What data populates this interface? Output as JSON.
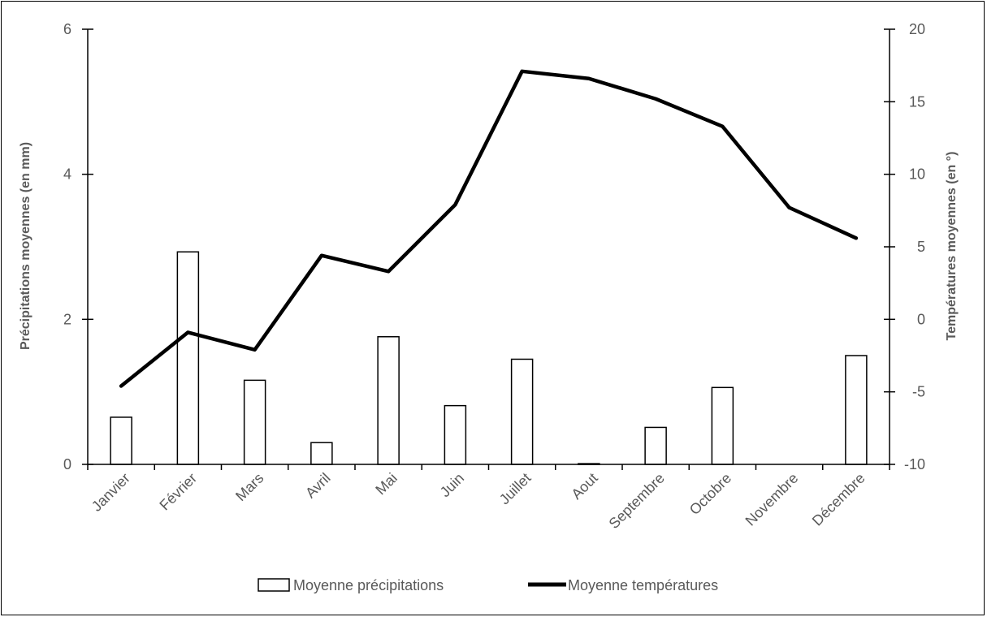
{
  "chart_data": {
    "type": "bar+line",
    "categories": [
      "Janvier",
      "Février",
      "Mars",
      "Avril",
      "Mai",
      "Juin",
      "Juillet",
      "Aout",
      "Septembre",
      "Octobre",
      "Novembre",
      "Décembre"
    ],
    "series": [
      {
        "name": "Moyenne précipitations",
        "type": "bar",
        "axis": "left",
        "values": [
          0.65,
          2.93,
          1.16,
          0.3,
          1.76,
          0.81,
          1.45,
          0.01,
          0.51,
          1.06,
          0.0,
          1.5
        ]
      },
      {
        "name": "Moyenne températures",
        "type": "line",
        "axis": "right",
        "values": [
          -4.6,
          -0.9,
          -2.1,
          4.4,
          3.3,
          7.9,
          17.1,
          16.6,
          15.2,
          13.3,
          7.7,
          5.6
        ]
      }
    ],
    "ylabel_left": "Précipitations moyennes (en mm)",
    "ylabel_right": "Températures moyennes (en °)",
    "ylim_left": [
      0,
      6
    ],
    "ylim_right": [
      -10,
      20
    ],
    "yticks_left": [
      "0",
      "2",
      "4",
      "6"
    ],
    "yticks_right": [
      "-10",
      "-5",
      "0",
      "5",
      "10",
      "15",
      "20"
    ],
    "grid": false,
    "legend_position": "bottom",
    "colors": {
      "bar_fill": "#ffffff",
      "bar_stroke": "#000000",
      "line": "#000000",
      "text": "#595959"
    }
  }
}
